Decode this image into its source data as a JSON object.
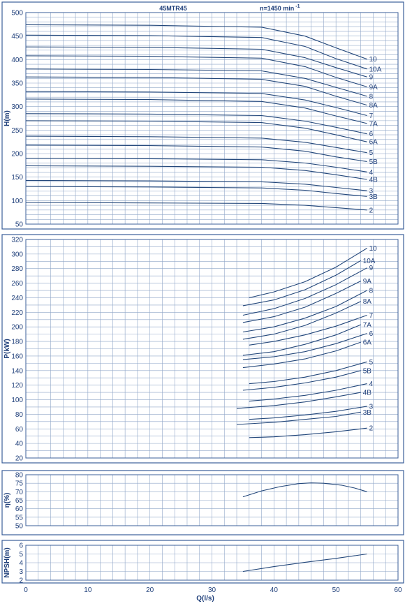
{
  "chart_title": "45MTR45",
  "speed_label": "n=1450 min",
  "speed_exponent": "-1",
  "x_axis": {
    "label": "Q(l/s)",
    "min": 0,
    "max": 60,
    "ticks": [
      0,
      10,
      20,
      30,
      40,
      50,
      60
    ],
    "minor_step": 2
  },
  "colors": {
    "curve": "#23477a",
    "frame": "#3b5f99",
    "grid": "#8fa6c8",
    "text": "#1f3f7a"
  },
  "chart_data": [
    {
      "type": "line",
      "panel": "H",
      "ylabel": "H(m)",
      "ylim": [
        50,
        500
      ],
      "yticks": [
        50,
        100,
        150,
        200,
        250,
        300,
        350,
        400,
        450,
        500
      ],
      "minor_step": 10,
      "series": [
        {
          "name": "10",
          "x": [
            0,
            20,
            38,
            45,
            50,
            55
          ],
          "y": [
            474,
            473,
            469,
            450,
            425,
            401
          ]
        },
        {
          "name": "10A",
          "x": [
            0,
            20,
            38,
            45,
            50,
            55
          ],
          "y": [
            452,
            451,
            447,
            428,
            402,
            380
          ]
        },
        {
          "name": "9",
          "x": [
            0,
            20,
            38,
            45,
            50,
            55
          ],
          "y": [
            427,
            426,
            422,
            404,
            383,
            363
          ]
        },
        {
          "name": "9A",
          "x": [
            0,
            20,
            38,
            45,
            50,
            55
          ],
          "y": [
            408,
            407,
            403,
            385,
            362,
            342
          ]
        },
        {
          "name": "8",
          "x": [
            0,
            20,
            38,
            45,
            50,
            55
          ],
          "y": [
            380,
            379,
            376,
            360,
            341,
            322
          ]
        },
        {
          "name": "8A",
          "x": [
            0,
            20,
            38,
            45,
            50,
            55
          ],
          "y": [
            363,
            362,
            358,
            343,
            322,
            303
          ]
        },
        {
          "name": "7",
          "x": [
            0,
            20,
            38,
            45,
            50,
            55
          ],
          "y": [
            332,
            331,
            328,
            314,
            298,
            281
          ]
        },
        {
          "name": "7A",
          "x": [
            0,
            20,
            38,
            45,
            50,
            55
          ],
          "y": [
            316,
            315,
            311,
            297,
            280,
            264
          ]
        },
        {
          "name": "6",
          "x": [
            0,
            20,
            38,
            45,
            50,
            55
          ],
          "y": [
            285,
            284,
            281,
            269,
            256,
            242
          ]
        },
        {
          "name": "6A",
          "x": [
            0,
            20,
            38,
            45,
            50,
            55
          ],
          "y": [
            270,
            269,
            266,
            254,
            240,
            225
          ]
        },
        {
          "name": "5",
          "x": [
            0,
            20,
            38,
            45,
            50,
            55
          ],
          "y": [
            237,
            236,
            233,
            224,
            213,
            202
          ]
        },
        {
          "name": "5B",
          "x": [
            0,
            20,
            38,
            45,
            50,
            55
          ],
          "y": [
            218,
            217,
            214,
            205,
            193,
            183
          ]
        },
        {
          "name": "4",
          "x": [
            0,
            20,
            38,
            45,
            50,
            55
          ],
          "y": [
            190,
            189,
            187,
            180,
            171,
            161
          ]
        },
        {
          "name": "4B",
          "x": [
            0,
            20,
            38,
            45,
            50,
            55
          ],
          "y": [
            174,
            173,
            171,
            164,
            155,
            145
          ]
        },
        {
          "name": "3",
          "x": [
            0,
            20,
            38,
            45,
            50,
            55
          ],
          "y": [
            143,
            142,
            140,
            135,
            128,
            121
          ]
        },
        {
          "name": "3B",
          "x": [
            0,
            20,
            38,
            45,
            50,
            55
          ],
          "y": [
            130,
            129,
            127,
            122,
            115,
            109
          ]
        },
        {
          "name": "2",
          "x": [
            0,
            20,
            38,
            45,
            50,
            55
          ],
          "y": [
            96,
            95,
            94,
            90,
            85,
            80
          ]
        }
      ]
    },
    {
      "type": "line",
      "panel": "P",
      "ylabel": "P(kW)",
      "ylim": [
        20,
        320
      ],
      "yticks": [
        20,
        40,
        60,
        80,
        100,
        120,
        140,
        160,
        180,
        200,
        220,
        240,
        260,
        280,
        300,
        320
      ],
      "minor_step": 10,
      "series": [
        {
          "name": "10",
          "x": [
            36,
            40,
            45,
            50,
            55
          ],
          "y": [
            240,
            248,
            262,
            282,
            308
          ]
        },
        {
          "name": "10A",
          "x": [
            35,
            40,
            45,
            50,
            54
          ],
          "y": [
            229,
            237,
            251,
            271,
            291
          ]
        },
        {
          "name": "9",
          "x": [
            35,
            40,
            45,
            50,
            55
          ],
          "y": [
            216,
            225,
            239,
            258,
            281
          ]
        },
        {
          "name": "9A",
          "x": [
            35,
            40,
            45,
            50,
            54
          ],
          "y": [
            206,
            214,
            227,
            246,
            263
          ]
        },
        {
          "name": "8",
          "x": [
            35,
            40,
            45,
            50,
            55
          ],
          "y": [
            193,
            200,
            212,
            228,
            250
          ]
        },
        {
          "name": "8A",
          "x": [
            35,
            40,
            45,
            50,
            54
          ],
          "y": [
            183,
            190,
            202,
            219,
            235
          ]
        },
        {
          "name": "7",
          "x": [
            36,
            40,
            45,
            50,
            55
          ],
          "y": [
            175,
            180,
            189,
            201,
            216
          ]
        },
        {
          "name": "7A",
          "x": [
            35,
            40,
            45,
            50,
            54
          ],
          "y": [
            161,
            166,
            176,
            189,
            203
          ]
        },
        {
          "name": "6",
          "x": [
            35,
            40,
            45,
            50,
            55
          ],
          "y": [
            155,
            159,
            166,
            177,
            191
          ]
        },
        {
          "name": "6A",
          "x": [
            35,
            40,
            45,
            50,
            54
          ],
          "y": [
            144,
            149,
            156,
            167,
            179
          ]
        },
        {
          "name": "5",
          "x": [
            36,
            40,
            45,
            50,
            55
          ],
          "y": [
            122,
            125,
            131,
            140,
            152
          ]
        },
        {
          "name": "5B",
          "x": [
            35,
            40,
            45,
            50,
            54
          ],
          "y": [
            113,
            117,
            123,
            131,
            140
          ]
        },
        {
          "name": "4",
          "x": [
            36,
            40,
            45,
            50,
            55
          ],
          "y": [
            98,
            101,
            106,
            113,
            122
          ]
        },
        {
          "name": "4B",
          "x": [
            34,
            40,
            45,
            50,
            54
          ],
          "y": [
            88,
            92,
            97,
            104,
            110
          ]
        },
        {
          "name": "3",
          "x": [
            36,
            40,
            45,
            50,
            55
          ],
          "y": [
            73,
            75,
            79,
            84,
            91
          ]
        },
        {
          "name": "3B",
          "x": [
            34,
            40,
            45,
            50,
            54
          ],
          "y": [
            66,
            69,
            73,
            77,
            83
          ]
        },
        {
          "name": "2",
          "x": [
            36,
            40,
            45,
            50,
            55
          ],
          "y": [
            48,
            49,
            52,
            56,
            61
          ]
        }
      ]
    },
    {
      "type": "line",
      "panel": "eta",
      "ylabel": "η(%)",
      "ylim": [
        50,
        80
      ],
      "yticks": [
        50,
        55,
        60,
        65,
        70,
        75,
        80
      ],
      "minor_step": 5,
      "series": [
        {
          "x": [
            35,
            38,
            41,
            44,
            46,
            48,
            51,
            53,
            55
          ],
          "y": [
            67,
            70.5,
            73,
            74.8,
            75.2,
            75,
            73.8,
            72.2,
            70
          ]
        }
      ]
    },
    {
      "type": "line",
      "panel": "NPSH",
      "ylabel": "NPSH(m)",
      "ylim": [
        2,
        6
      ],
      "yticks": [
        2,
        3,
        4,
        5,
        6
      ],
      "minor_step": 1,
      "series": [
        {
          "x": [
            35,
            40,
            45,
            50,
            55
          ],
          "y": [
            3,
            3.55,
            4.05,
            4.5,
            5
          ]
        }
      ]
    }
  ]
}
